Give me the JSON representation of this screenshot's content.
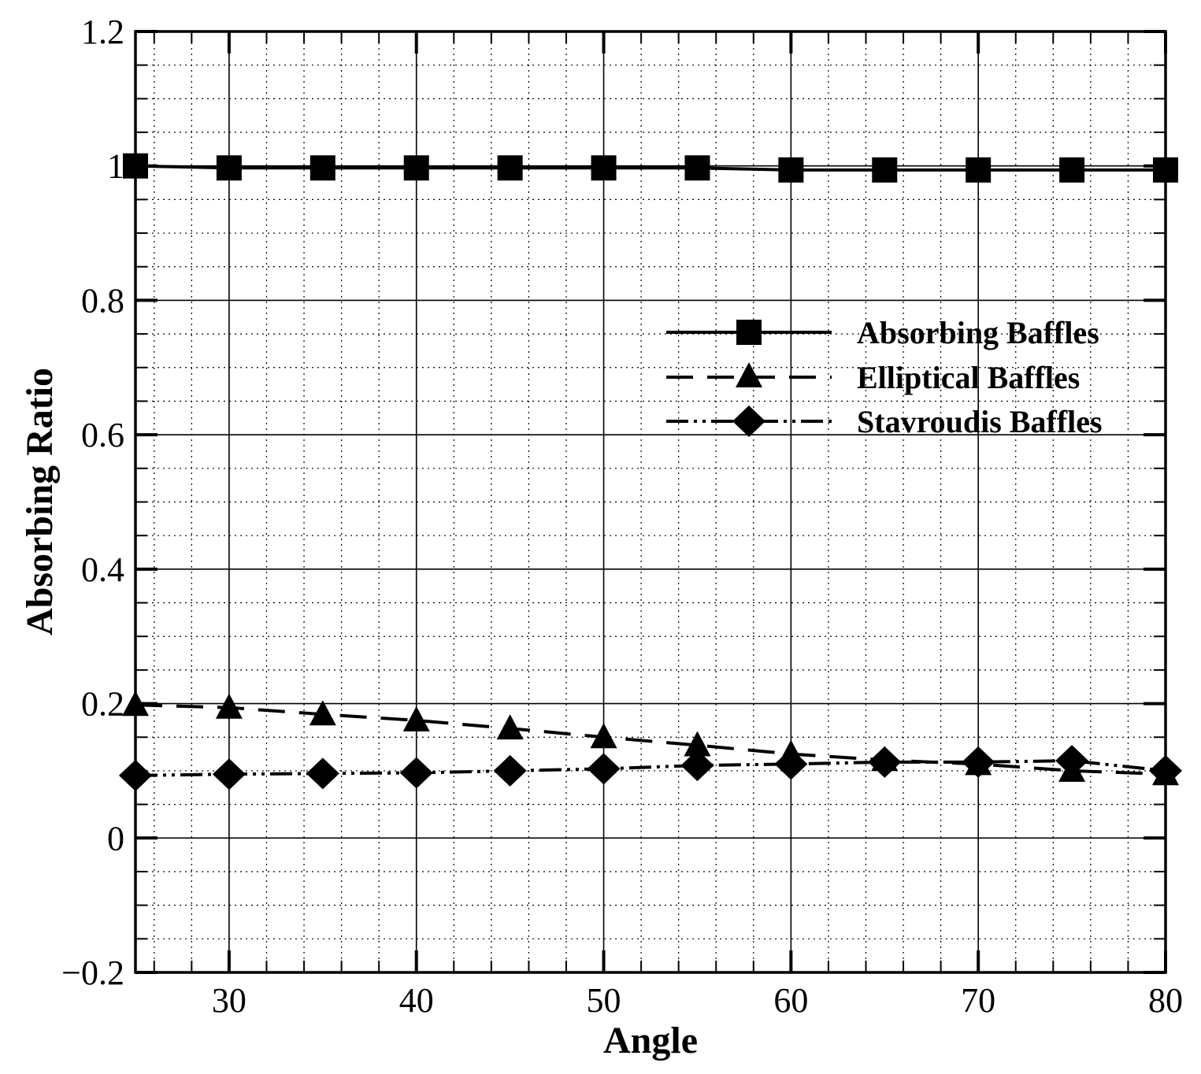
{
  "chart_data": {
    "type": "line",
    "xlabel": "Angle",
    "ylabel": "Absorbing Ratio",
    "xlim": [
      25,
      80
    ],
    "ylim": [
      -0.2,
      1.2
    ],
    "xticks": [
      30,
      40,
      50,
      60,
      70,
      80
    ],
    "xtick_labels": [
      "30",
      "40",
      "50",
      "60",
      "70",
      "80"
    ],
    "yticks": [
      -0.2,
      0,
      0.2,
      0.4,
      0.6,
      0.8,
      1,
      1.2
    ],
    "ytick_labels": [
      "−0.2",
      "0",
      "0.2",
      "0.4",
      "0.6",
      "0.8",
      "1",
      "1.2"
    ],
    "grid": true,
    "legend_position": "upper-right",
    "x": [
      25,
      30,
      35,
      40,
      45,
      50,
      55,
      60,
      65,
      70,
      75,
      80
    ],
    "series": [
      {
        "name": "Absorbing Baffles",
        "marker": "square",
        "dash": "solid",
        "values": [
          1.0,
          0.997,
          0.997,
          0.997,
          0.997,
          0.997,
          0.997,
          0.994,
          0.994,
          0.994,
          0.994,
          0.994
        ]
      },
      {
        "name": "Elliptical Baffles",
        "marker": "triangle",
        "dash": "dashed",
        "values": [
          0.198,
          0.194,
          0.184,
          0.175,
          0.163,
          0.15,
          0.138,
          0.125,
          0.116,
          0.11,
          0.1,
          0.095
        ]
      },
      {
        "name": "Stavroudis Baffles",
        "marker": "diamond",
        "dash": "dash-dot-dot",
        "values": [
          0.093,
          0.095,
          0.096,
          0.097,
          0.1,
          0.103,
          0.108,
          0.11,
          0.113,
          0.113,
          0.115,
          0.1
        ]
      }
    ]
  }
}
